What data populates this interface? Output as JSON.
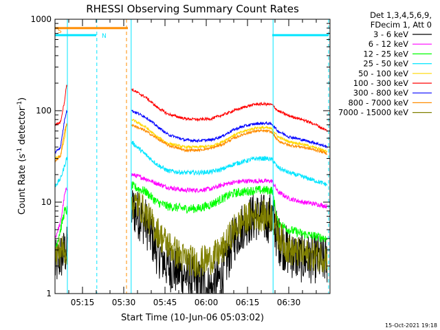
{
  "chart_data": {
    "type": "line",
    "title": "RHESSI Observing Summary Count Rates",
    "xlabel": "Start Time (10-Jun-06 05:03:02)",
    "ylabel_main": "Count Rate (s",
    "ylabel_sup1": "-1",
    "ylabel_mid": " detector",
    "ylabel_sup2": "-1",
    "ylabel_end": ")",
    "yscale": "log",
    "ylim": [
      1,
      1000
    ],
    "xlim_minutes": [
      305,
      405
    ],
    "xticks": [
      {
        "t": 315,
        "label": "05:15"
      },
      {
        "t": 330,
        "label": "05:30"
      },
      {
        "t": 345,
        "label": "05:45"
      },
      {
        "t": 360,
        "label": "06:00"
      },
      {
        "t": 375,
        "label": "06:15"
      },
      {
        "t": 390,
        "label": "06:30"
      }
    ],
    "yticks": [
      {
        "v": 1,
        "label": "1"
      },
      {
        "v": 10,
        "label": "10"
      },
      {
        "v": 100,
        "label": "100"
      },
      {
        "v": 1000,
        "label": "1000"
      }
    ],
    "legend_header": [
      "Det 1,3,4,5,6,9,",
      "FDecim 1, Att 0"
    ],
    "legend_position": "top-right",
    "footer_date": "15-Oct-2021 19:18",
    "flag_bars": [
      {
        "label": "S",
        "t0": 305.0,
        "t1": 331.5,
        "value": 800,
        "color": "#ff8c00"
      },
      {
        "label": "N",
        "t0": 305.0,
        "t1": 320.0,
        "value": 670,
        "color": "#00e5ff"
      },
      {
        "label": "",
        "t0": 384.0,
        "t1": 404.5,
        "value": 670,
        "color": "#00e5ff"
      }
    ],
    "event_lines": [
      {
        "t": 309.5,
        "style": "solid",
        "color": "#00e5ff"
      },
      {
        "t": 320.2,
        "style": "dashed",
        "color": "#00e5ff"
      },
      {
        "t": 331.0,
        "style": "dashed",
        "color": "#ff8c00"
      },
      {
        "t": 332.7,
        "style": "solid",
        "color": "#00e5ff"
      },
      {
        "t": 384.3,
        "style": "solid",
        "color": "#00e5ff"
      },
      {
        "t": 404.5,
        "style": "dashed",
        "color": "#00e5ff"
      }
    ],
    "series": [
      {
        "name": "3 - 6 keV",
        "color": "#000000",
        "noise": 0.55,
        "data": [
          [
            305,
            2
          ],
          [
            307,
            2.5
          ],
          [
            309.5,
            3
          ],
          [
            333,
            8.5
          ],
          [
            338,
            6
          ],
          [
            342,
            3
          ],
          [
            346,
            2
          ],
          [
            352,
            1.6
          ],
          [
            357,
            1.3
          ],
          [
            362,
            1.1
          ],
          [
            366,
            1.6
          ],
          [
            370,
            4
          ],
          [
            374,
            6
          ],
          [
            378,
            7
          ],
          [
            382,
            6.5
          ],
          [
            384,
            7
          ],
          [
            386,
            4
          ],
          [
            390,
            2.8
          ],
          [
            395,
            2.4
          ],
          [
            400,
            2.4
          ],
          [
            404,
            2.3
          ]
        ]
      },
      {
        "name": "6 - 12 keV",
        "color": "#ff00ff",
        "noise": 0.05,
        "data": [
          [
            305,
            4
          ],
          [
            307,
            6
          ],
          [
            308.5,
            12
          ],
          [
            309.2,
            14
          ],
          [
            333,
            20
          ],
          [
            338,
            18
          ],
          [
            342,
            16
          ],
          [
            346,
            14.5
          ],
          [
            352,
            13.5
          ],
          [
            357,
            13.5
          ],
          [
            362,
            14
          ],
          [
            366,
            15.5
          ],
          [
            370,
            16.5
          ],
          [
            374,
            17
          ],
          [
            378,
            17
          ],
          [
            382,
            17
          ],
          [
            384,
            17
          ],
          [
            386,
            13
          ],
          [
            390,
            11
          ],
          [
            395,
            10
          ],
          [
            400,
            9.5
          ],
          [
            404,
            9
          ]
        ]
      },
      {
        "name": "12 - 25 keV",
        "color": "#00ff00",
        "noise": 0.1,
        "data": [
          [
            305,
            3
          ],
          [
            307,
            5
          ],
          [
            308.5,
            8
          ],
          [
            309.2,
            8
          ],
          [
            333,
            15
          ],
          [
            338,
            13
          ],
          [
            342,
            10
          ],
          [
            346,
            9
          ],
          [
            352,
            8.5
          ],
          [
            357,
            8.5
          ],
          [
            362,
            9.5
          ],
          [
            366,
            11
          ],
          [
            370,
            12.5
          ],
          [
            374,
            13
          ],
          [
            378,
            13.5
          ],
          [
            382,
            13.5
          ],
          [
            384,
            13.5
          ],
          [
            386,
            6
          ],
          [
            390,
            5
          ],
          [
            395,
            4.5
          ],
          [
            400,
            4.2
          ],
          [
            404,
            4.0
          ]
        ]
      },
      {
        "name": "25 - 50 keV",
        "color": "#00e5ff",
        "noise": 0.05,
        "data": [
          [
            305,
            15
          ],
          [
            307,
            18
          ],
          [
            308.5,
            25
          ],
          [
            309.2,
            30
          ],
          [
            333,
            45
          ],
          [
            338,
            33
          ],
          [
            342,
            26
          ],
          [
            346,
            22
          ],
          [
            352,
            21
          ],
          [
            357,
            21
          ],
          [
            362,
            21.5
          ],
          [
            366,
            23
          ],
          [
            370,
            26
          ],
          [
            374,
            28
          ],
          [
            378,
            30
          ],
          [
            382,
            30
          ],
          [
            384,
            29
          ],
          [
            386,
            24
          ],
          [
            390,
            21
          ],
          [
            395,
            19
          ],
          [
            400,
            17
          ],
          [
            404,
            15.5
          ]
        ]
      },
      {
        "name": "50 - 100 keV",
        "color": "#ffd700",
        "noise": 0.03,
        "data": [
          [
            305,
            30
          ],
          [
            307,
            32
          ],
          [
            308.5,
            50
          ],
          [
            309.2,
            70
          ],
          [
            333,
            80
          ],
          [
            338,
            66
          ],
          [
            342,
            52
          ],
          [
            346,
            44
          ],
          [
            352,
            40
          ],
          [
            357,
            40
          ],
          [
            362,
            41
          ],
          [
            366,
            46
          ],
          [
            370,
            54
          ],
          [
            374,
            60
          ],
          [
            378,
            65
          ],
          [
            382,
            65
          ],
          [
            384,
            63
          ],
          [
            386,
            52
          ],
          [
            390,
            46
          ],
          [
            395,
            43
          ],
          [
            400,
            39
          ],
          [
            404,
            36
          ]
        ]
      },
      {
        "name": "100 - 300 keV",
        "color": "#ff0000",
        "noise": 0.03,
        "data": [
          [
            305,
            70
          ],
          [
            307,
            75
          ],
          [
            308.5,
            130
          ],
          [
            309.2,
            190
          ],
          [
            333,
            170
          ],
          [
            338,
            140
          ],
          [
            342,
            110
          ],
          [
            346,
            92
          ],
          [
            352,
            82
          ],
          [
            357,
            80
          ],
          [
            362,
            82
          ],
          [
            366,
            90
          ],
          [
            370,
            100
          ],
          [
            374,
            110
          ],
          [
            378,
            118
          ],
          [
            382,
            118
          ],
          [
            384,
            116
          ],
          [
            386,
            100
          ],
          [
            390,
            88
          ],
          [
            395,
            80
          ],
          [
            400,
            70
          ],
          [
            404,
            60
          ]
        ]
      },
      {
        "name": "300 - 800 keV",
        "color": "#0000ff",
        "noise": 0.03,
        "data": [
          [
            305,
            35
          ],
          [
            307,
            40
          ],
          [
            308.5,
            80
          ],
          [
            309.2,
            100
          ],
          [
            333,
            100
          ],
          [
            338,
            85
          ],
          [
            342,
            68
          ],
          [
            346,
            55
          ],
          [
            352,
            48
          ],
          [
            357,
            47
          ],
          [
            362,
            48
          ],
          [
            366,
            53
          ],
          [
            370,
            62
          ],
          [
            374,
            68
          ],
          [
            378,
            72
          ],
          [
            382,
            73
          ],
          [
            384,
            71
          ],
          [
            386,
            60
          ],
          [
            390,
            52
          ],
          [
            395,
            48
          ],
          [
            400,
            44
          ],
          [
            404,
            40
          ]
        ]
      },
      {
        "name": "800 - 7000 keV",
        "color": "#ff8c00",
        "noise": 0.03,
        "data": [
          [
            305,
            28
          ],
          [
            307,
            32
          ],
          [
            308.5,
            60
          ],
          [
            309.2,
            70
          ],
          [
            333,
            70
          ],
          [
            338,
            60
          ],
          [
            342,
            50
          ],
          [
            346,
            42
          ],
          [
            352,
            37
          ],
          [
            357,
            37
          ],
          [
            362,
            39
          ],
          [
            366,
            43
          ],
          [
            370,
            50
          ],
          [
            374,
            56
          ],
          [
            378,
            60
          ],
          [
            382,
            60
          ],
          [
            384,
            58
          ],
          [
            386,
            47
          ],
          [
            390,
            42
          ],
          [
            395,
            40
          ],
          [
            400,
            37
          ],
          [
            404,
            34
          ]
        ]
      },
      {
        "name": "7000 - 15000 keV",
        "color": "#808000",
        "noise": 0.35,
        "data": [
          [
            305,
            2.5
          ],
          [
            307,
            3
          ],
          [
            309.5,
            3
          ],
          [
            333,
            10
          ],
          [
            336,
            9
          ],
          [
            340,
            6
          ],
          [
            344,
            4
          ],
          [
            348,
            3
          ],
          [
            352,
            2.4
          ],
          [
            357,
            2.2
          ],
          [
            362,
            2.4
          ],
          [
            366,
            3
          ],
          [
            370,
            5
          ],
          [
            374,
            6.5
          ],
          [
            378,
            7.2
          ],
          [
            382,
            7.0
          ],
          [
            384,
            7
          ],
          [
            386,
            4.5
          ],
          [
            390,
            3
          ],
          [
            395,
            2.7
          ],
          [
            400,
            2.6
          ],
          [
            404,
            2.5
          ]
        ]
      }
    ]
  }
}
